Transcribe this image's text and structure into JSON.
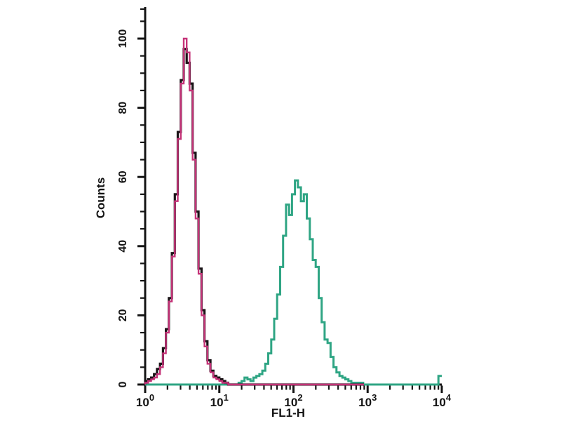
{
  "page": {
    "background": "#ffffff"
  },
  "chart_data": {
    "type": "line",
    "subtype": "flow-cytometry-overlay-histogram",
    "title": "",
    "xlabel": "FL1-H",
    "ylabel": "Counts",
    "x_scale": "log10",
    "x_decade_exponents": [
      0,
      1,
      2,
      3,
      4
    ],
    "ylim": [
      0,
      109
    ],
    "y_ticks": [
      0,
      20,
      40,
      60,
      80,
      100
    ],
    "y_minor_step": 5,
    "grid": false,
    "legend": "none",
    "axis_color": "#141414",
    "peak_summary": [
      {
        "series": "control-black",
        "mode_x": 3.3,
        "peak_count": 97
      },
      {
        "series": "control-red",
        "mode_x": 3.4,
        "peak_count": 100
      },
      {
        "series": "stained-green",
        "mode_x": 110,
        "peak_count": 59
      }
    ],
    "series": [
      {
        "name": "stained-green",
        "color": "#2fa584",
        "stroke_width": 3,
        "baseline_from_log": 0.0,
        "bins": {
          "start_log": 1.26,
          "width_log": 0.04,
          "counts": [
            0.5,
            1,
            2,
            1.5,
            1,
            2,
            2.5,
            3,
            4,
            6,
            9,
            13,
            19,
            26,
            34,
            43,
            52,
            49,
            55,
            59,
            57,
            53,
            55,
            48,
            42,
            36,
            34,
            25,
            18,
            13,
            12,
            8,
            5,
            3.5,
            2.5,
            2,
            1.5,
            1,
            0.5,
            0.5,
            0.5,
            0.5
          ]
        },
        "baseline_to_log": 3.955,
        "end_step": {
          "at_log": 3.955,
          "count": 2.5,
          "to_log": 4.0
        }
      },
      {
        "name": "control-black",
        "color": "#1b1418",
        "stroke_width": 3.2,
        "bins": {
          "start_log": 0.0,
          "width_log": 0.04,
          "counts": [
            1,
            1.5,
            2,
            3,
            4.5,
            6,
            10.5,
            16,
            25,
            38,
            55,
            73,
            88,
            97,
            93,
            87,
            67,
            50,
            33.5,
            21.5,
            12.5,
            7,
            4,
            2.5,
            2,
            1.5,
            1,
            0.5
          ]
        },
        "baseline_to_log": 2.95
      },
      {
        "name": "control-red",
        "color": "#c53378",
        "stroke_width": 2.4,
        "bins": {
          "start_log": 0.0,
          "width_log": 0.04,
          "counts": [
            0.5,
            1,
            1.5,
            2,
            3,
            5,
            9,
            15,
            24,
            37,
            53,
            71,
            87,
            100,
            96,
            85,
            65,
            48,
            32,
            20,
            11,
            6,
            3.5,
            2,
            1.5,
            1,
            0.5,
            0.5
          ]
        },
        "baseline_to_log": 2.95
      }
    ]
  }
}
